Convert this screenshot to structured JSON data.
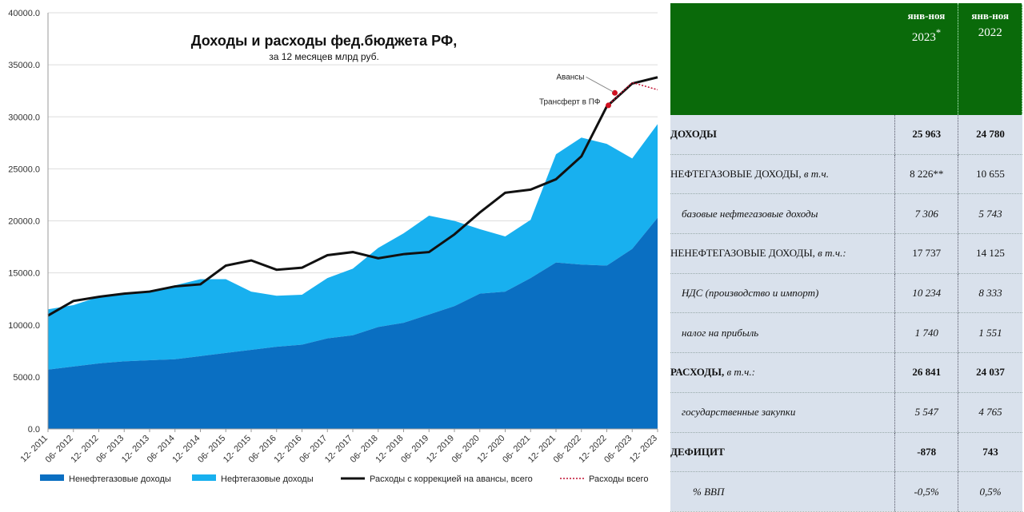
{
  "chart_data": {
    "type": "area",
    "title": "Доходы и расходы фед.бюджета РФ,",
    "subtitle": "за 12 месяцев млрд руб.",
    "ylim": [
      0,
      40000
    ],
    "yticks": [
      "0.0",
      "5000.0",
      "10000.0",
      "15000.0",
      "20000.0",
      "25000.0",
      "30000.0",
      "35000.0",
      "40000.0"
    ],
    "x_tick_labels": [
      "12- 2011",
      "06- 2012",
      "12- 2012",
      "06- 2013",
      "12- 2013",
      "06- 2014",
      "12- 2014",
      "06- 2015",
      "12- 2015",
      "06- 2016",
      "12- 2016",
      "06- 2017",
      "12- 2017",
      "06- 2018",
      "12- 2018",
      "06- 2019",
      "12- 2019",
      "06- 2020",
      "12- 2020",
      "06- 2021",
      "12- 2021",
      "06- 2022",
      "12- 2022",
      "06- 2023",
      "12- 2023"
    ],
    "x": [
      2011.92,
      2012.42,
      2012.92,
      2013.42,
      2013.92,
      2014.42,
      2014.92,
      2015.42,
      2015.92,
      2016.42,
      2016.92,
      2017.42,
      2017.92,
      2018.42,
      2018.92,
      2019.42,
      2019.92,
      2020.42,
      2020.92,
      2021.42,
      2021.92,
      2022.42,
      2022.92,
      2023.42,
      2023.92
    ],
    "series": [
      {
        "name": "Ненефтегазовые доходы",
        "color": "#0a6fc2",
        "values": [
          5700,
          6000,
          6300,
          6500,
          6600,
          6700,
          7000,
          7300,
          7600,
          7900,
          8100,
          8700,
          9000,
          9800,
          10200,
          11000,
          11800,
          13000,
          13200,
          14500,
          16000,
          15800,
          15700,
          17300,
          20300
        ]
      },
      {
        "name": "Нефтегазовые доходы",
        "color": "#18b0ef",
        "values": [
          5800,
          5900,
          6400,
          6500,
          6700,
          7100,
          7400,
          7100,
          5600,
          4900,
          4800,
          5800,
          6400,
          7600,
          8600,
          9500,
          8200,
          6200,
          5300,
          5600,
          10400,
          12200,
          11700,
          8700,
          9000
        ]
      },
      {
        "name": "Расходы с коррекцией на авансы, всего",
        "color": "#111111",
        "values": [
          10900,
          12300,
          12700,
          13000,
          13200,
          13700,
          13900,
          15700,
          16200,
          15300,
          15500,
          16700,
          17000,
          16400,
          16800,
          17000,
          18700,
          20800,
          22700,
          23000,
          24000,
          26200,
          31000,
          33200,
          33800
        ]
      },
      {
        "name": "Расходы всего",
        "color": "#c01030",
        "values": [
          null,
          null,
          null,
          null,
          null,
          null,
          null,
          null,
          null,
          null,
          null,
          null,
          null,
          null,
          null,
          null,
          null,
          null,
          null,
          null,
          null,
          null,
          31000,
          33300,
          32600
        ]
      }
    ],
    "annotations": [
      "Авансы",
      "Трансферт в ПФ"
    ],
    "legend_position": "bottom"
  },
  "table": {
    "headers": [
      {
        "label": "",
        "year": ""
      },
      {
        "label": "янв-ноя",
        "year": "2023",
        "mark": "*"
      },
      {
        "label": "янв-ноя",
        "year": "2022",
        "mark": ""
      }
    ],
    "rows": [
      {
        "label": "ДОХОДЫ",
        "suffix": "",
        "v2023": "25 963",
        "v2022": "24 780",
        "style": "bold"
      },
      {
        "label": "НЕФТЕГАЗОВЫЕ ДОХОДЫ,",
        "suffix": " в т.ч.",
        "v2023": "8 226**",
        "v2022": "10 655",
        "style": "caps"
      },
      {
        "label": "базовые нефтегазовые доходы",
        "suffix": "",
        "v2023": "7 306",
        "v2022": "5 743",
        "style": "indent"
      },
      {
        "label": "НЕНЕФТЕГАЗОВЫЕ ДОХОДЫ,",
        "suffix": " в т.ч.:",
        "v2023": "17 737",
        "v2022": "14 125",
        "style": "caps"
      },
      {
        "label": "НДС (производство и импорт)",
        "suffix": "",
        "v2023": "10 234",
        "v2022": "8 333",
        "style": "indent"
      },
      {
        "label": "налог на прибыль",
        "suffix": "",
        "v2023": "1 740",
        "v2022": "1 551",
        "style": "indent"
      },
      {
        "label": "РАСХОДЫ,",
        "suffix": " в т.ч.:",
        "v2023": "26 841",
        "v2022": "24 037",
        "style": "bold"
      },
      {
        "label": "государственные закупки",
        "suffix": "",
        "v2023": "5 547",
        "v2022": "4 765",
        "style": "indent"
      },
      {
        "label": "ДЕФИЦИТ",
        "suffix": "",
        "v2023": "-878",
        "v2022": "743",
        "style": "bold"
      },
      {
        "label": "% ВВП",
        "suffix": "",
        "v2023": "-0,5%",
        "v2022": "0,5%",
        "style": "indent2"
      }
    ]
  }
}
